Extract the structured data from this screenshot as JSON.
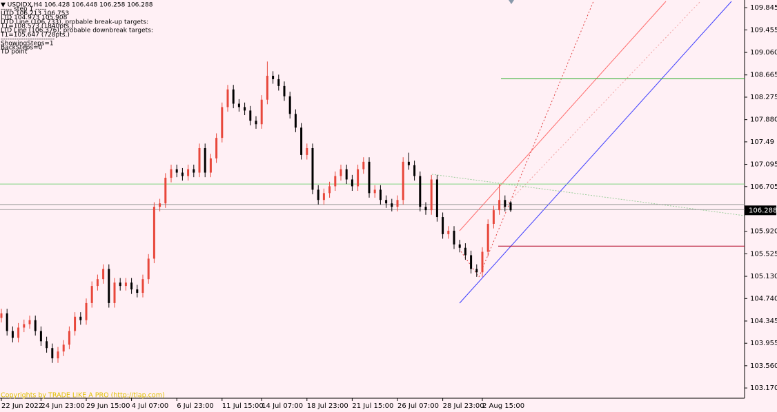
{
  "chart_data": {
    "type": "candlestick",
    "info": [
      "▼ USDIDX,H4  106.428 106.448 106.258 106.288",
      "----- step 1 -----",
      "UTD  106.213  106.753",
      "LTD  104.973  105.908",
      "UTD Line (106.733), probable break-up targets:",
      "T1=108.573 (1840pts.)",
      "LTD Line (106.376), probable downbreak targets:",
      "T1=105.647 (728pts.)",
      "------------------------",
      "ShowingSteps=1",
      "BackSteps=0",
      "TD point"
    ],
    "copyright": "Copyrights by TRADE LIKE A PRO (http://tlap.com)",
    "categories": [
      "22 Jun 2022",
      null,
      null,
      null,
      null,
      null,
      null,
      "24 Jun 23:00",
      null,
      null,
      null,
      null,
      null,
      null,
      null,
      "29 Jun 15:00",
      null,
      null,
      null,
      null,
      null,
      null,
      null,
      "4 Jul 07:00",
      null,
      null,
      null,
      null,
      null,
      null,
      null,
      "6 Jul 23:00",
      null,
      null,
      null,
      null,
      null,
      null,
      null,
      "11 Jul 15:00",
      null,
      null,
      null,
      null,
      null,
      null,
      "14 Jul 07:00",
      null,
      null,
      null,
      null,
      null,
      null,
      null,
      "18 Jul 23:00",
      null,
      null,
      null,
      null,
      null,
      null,
      null,
      "21 Jul 15:00",
      null,
      null,
      null,
      null,
      null,
      null,
      null,
      "26 Jul 07:00",
      null,
      null,
      null,
      null,
      null,
      null,
      null,
      "28 Jul 23:00",
      null,
      null,
      null,
      null,
      null,
      null,
      "2 Aug 15:00",
      null,
      null,
      null,
      null,
      null
    ],
    "open": [
      104.4,
      104.48,
      104.17,
      104.05,
      104.23,
      104.29,
      104.36,
      104.17,
      103.99,
      103.87,
      103.69,
      103.81,
      103.93,
      104.17,
      104.42,
      104.36,
      104.66,
      104.96,
      105.08,
      105.26,
      104.66,
      105.02,
      104.96,
      105.02,
      104.9,
      104.84,
      105.08,
      105.44,
      106.35,
      106.41,
      106.86,
      107.01,
      106.95,
      106.89,
      107.01,
      106.95,
      107.38,
      106.95,
      107.2,
      107.56,
      108.1,
      108.41,
      108.16,
      108.1,
      108.04,
      107.86,
      107.8,
      108.23,
      108.65,
      108.59,
      108.47,
      108.29,
      107.98,
      107.74,
      107.26,
      107.38,
      106.65,
      106.47,
      106.59,
      106.71,
      106.89,
      107.01,
      106.83,
      106.71,
      107.01,
      107.14,
      106.59,
      106.65,
      106.47,
      106.41,
      106.35,
      106.47,
      107.14,
      107.08,
      106.89,
      106.35,
      106.29,
      106.83,
      106.17,
      105.87,
      105.93,
      105.69,
      105.63,
      105.5,
      105.26,
      105.2,
      105.56,
      106.05,
      106.29,
      106.47,
      106.428
    ],
    "high": [
      104.56,
      104.56,
      104.25,
      104.31,
      104.37,
      104.44,
      104.44,
      104.25,
      104.07,
      103.95,
      103.89,
      104.01,
      104.25,
      104.5,
      104.5,
      104.74,
      105.04,
      105.16,
      105.34,
      105.34,
      105.1,
      105.1,
      105.1,
      105.1,
      104.98,
      105.16,
      105.52,
      106.43,
      106.49,
      106.94,
      107.09,
      107.09,
      107.03,
      107.09,
      107.09,
      107.46,
      107.46,
      107.28,
      107.64,
      108.18,
      108.49,
      108.49,
      108.24,
      108.18,
      108.12,
      107.94,
      108.31,
      108.9,
      108.73,
      108.67,
      108.55,
      108.37,
      108.06,
      107.82,
      107.46,
      107.46,
      106.73,
      106.67,
      106.79,
      106.97,
      107.09,
      107.09,
      106.91,
      107.09,
      107.22,
      107.22,
      106.73,
      106.73,
      106.55,
      106.49,
      106.55,
      107.22,
      107.3,
      107.16,
      106.97,
      106.43,
      106.91,
      106.91,
      106.25,
      106.01,
      106.01,
      105.77,
      105.71,
      105.58,
      105.34,
      105.64,
      106.13,
      106.37,
      106.75,
      106.55,
      106.448
    ],
    "low": [
      104.32,
      104.09,
      103.97,
      103.97,
      104.15,
      104.21,
      104.09,
      103.91,
      103.79,
      103.61,
      103.61,
      103.73,
      103.85,
      104.09,
      104.28,
      104.28,
      104.58,
      104.88,
      105.0,
      104.58,
      104.58,
      104.88,
      104.88,
      104.82,
      104.76,
      104.76,
      105.0,
      105.36,
      106.27,
      106.33,
      106.78,
      106.87,
      106.81,
      106.81,
      106.87,
      106.87,
      106.87,
      106.87,
      107.12,
      107.48,
      108.02,
      108.08,
      108.02,
      107.96,
      107.78,
      107.72,
      107.72,
      108.15,
      108.51,
      108.39,
      108.21,
      107.9,
      107.66,
      107.18,
      107.18,
      106.57,
      106.39,
      106.39,
      106.51,
      106.63,
      106.81,
      106.75,
      106.63,
      106.63,
      106.93,
      106.51,
      106.51,
      106.39,
      106.33,
      106.27,
      106.27,
      106.39,
      107.0,
      106.81,
      106.27,
      106.21,
      106.21,
      106.09,
      105.79,
      105.79,
      105.61,
      105.55,
      105.42,
      105.18,
      105.12,
      105.12,
      105.48,
      105.97,
      106.21,
      106.27,
      106.258
    ],
    "close": [
      104.48,
      104.17,
      104.05,
      104.23,
      104.29,
      104.36,
      104.17,
      103.99,
      103.87,
      103.69,
      103.81,
      103.93,
      104.17,
      104.42,
      104.36,
      104.66,
      104.96,
      105.08,
      105.26,
      104.66,
      105.02,
      104.96,
      105.02,
      104.9,
      104.84,
      105.08,
      105.44,
      106.35,
      106.41,
      106.86,
      107.01,
      106.95,
      106.89,
      107.01,
      106.95,
      107.38,
      106.95,
      107.2,
      107.56,
      108.1,
      108.41,
      108.16,
      108.1,
      108.04,
      107.86,
      107.8,
      108.23,
      108.65,
      108.59,
      108.47,
      108.29,
      107.98,
      107.74,
      107.26,
      107.38,
      106.65,
      106.47,
      106.59,
      106.71,
      106.89,
      107.01,
      106.83,
      106.71,
      107.01,
      107.14,
      106.59,
      106.65,
      106.47,
      106.41,
      106.35,
      106.47,
      107.14,
      107.08,
      106.89,
      106.35,
      106.29,
      106.83,
      106.17,
      105.87,
      105.93,
      105.69,
      105.63,
      105.5,
      105.26,
      105.2,
      105.56,
      106.05,
      106.29,
      106.47,
      106.35,
      106.288
    ],
    "up_color": "#e8473b",
    "down_color": "#000000",
    "ylim": [
      102.99,
      109.98
    ],
    "yticks": [
      109.845,
      109.455,
      {
        "value": 109.06,
        "label": "109.060"
      },
      108.665,
      108.275,
      {
        "value": 107.88,
        "label": "107.880"
      },
      107.49,
      107.095,
      106.705,
      {
        "value": 105.92,
        "label": "105.920"
      },
      105.525,
      {
        "value": 105.13,
        "label": "105.130"
      },
      {
        "value": 104.74,
        "label": "104.740"
      },
      104.345,
      103.955,
      {
        "value": 103.56,
        "label": "103.560"
      },
      {
        "value": 103.17,
        "label": "103.170"
      }
    ],
    "last_price": 106.288,
    "levels": [
      {
        "value": 108.6,
        "color": "#22aa22"
      },
      {
        "value": 106.75,
        "color": "#7fd47f"
      },
      {
        "value": 106.39,
        "color": "#999999"
      },
      {
        "value": 106.3,
        "color": "#999999"
      },
      {
        "value": 105.66,
        "color": "#b00020"
      }
    ]
  }
}
